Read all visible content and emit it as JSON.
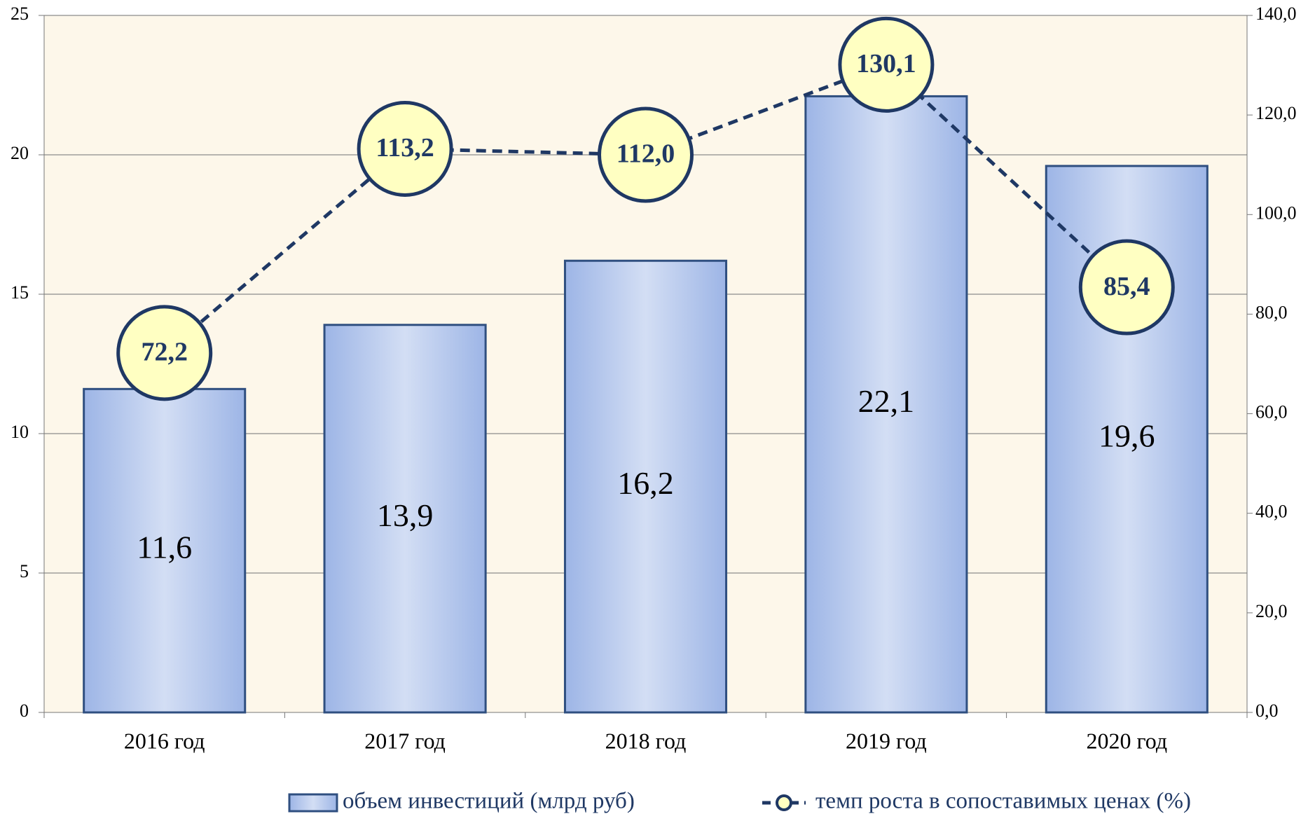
{
  "chart_data": {
    "type": "bar",
    "categories": [
      "2016 год",
      "2017 год",
      "2018 год",
      "2019 год",
      "2020 год"
    ],
    "series": [
      {
        "name": "объем инвестиций (млрд руб)",
        "type": "bar",
        "color": "#a9c0ea",
        "values": [
          11.6,
          13.9,
          16.2,
          22.1,
          19.6
        ],
        "value_labels": [
          "11,6",
          "13,9",
          "16,2",
          "22,1",
          "19,6"
        ]
      },
      {
        "name": "темп роста в сопоставимых ценах (%)",
        "type": "line",
        "axis": "y2",
        "color": "#1f3864",
        "values": [
          72.2,
          113.2,
          112.0,
          130.1,
          85.4
        ],
        "value_labels": [
          "72,2",
          "113,2",
          "112,0",
          "130,1",
          "85,4"
        ]
      }
    ],
    "ylim": [
      0,
      25
    ],
    "yticks": [
      0,
      5,
      10,
      15,
      20,
      25
    ],
    "y2lim": [
      0,
      140
    ],
    "y2ticks": [
      {
        "value": 0,
        "label": "0,0"
      },
      {
        "value": 20,
        "label": "20,0"
      },
      {
        "value": 40,
        "label": "40,0"
      },
      {
        "value": 60,
        "label": "60,0"
      },
      {
        "value": 80,
        "label": "80,0"
      },
      {
        "value": 100,
        "label": "100,0"
      },
      {
        "value": 120,
        "label": "120,0"
      },
      {
        "value": 140,
        "label": "140,0"
      }
    ],
    "grid": true
  }
}
